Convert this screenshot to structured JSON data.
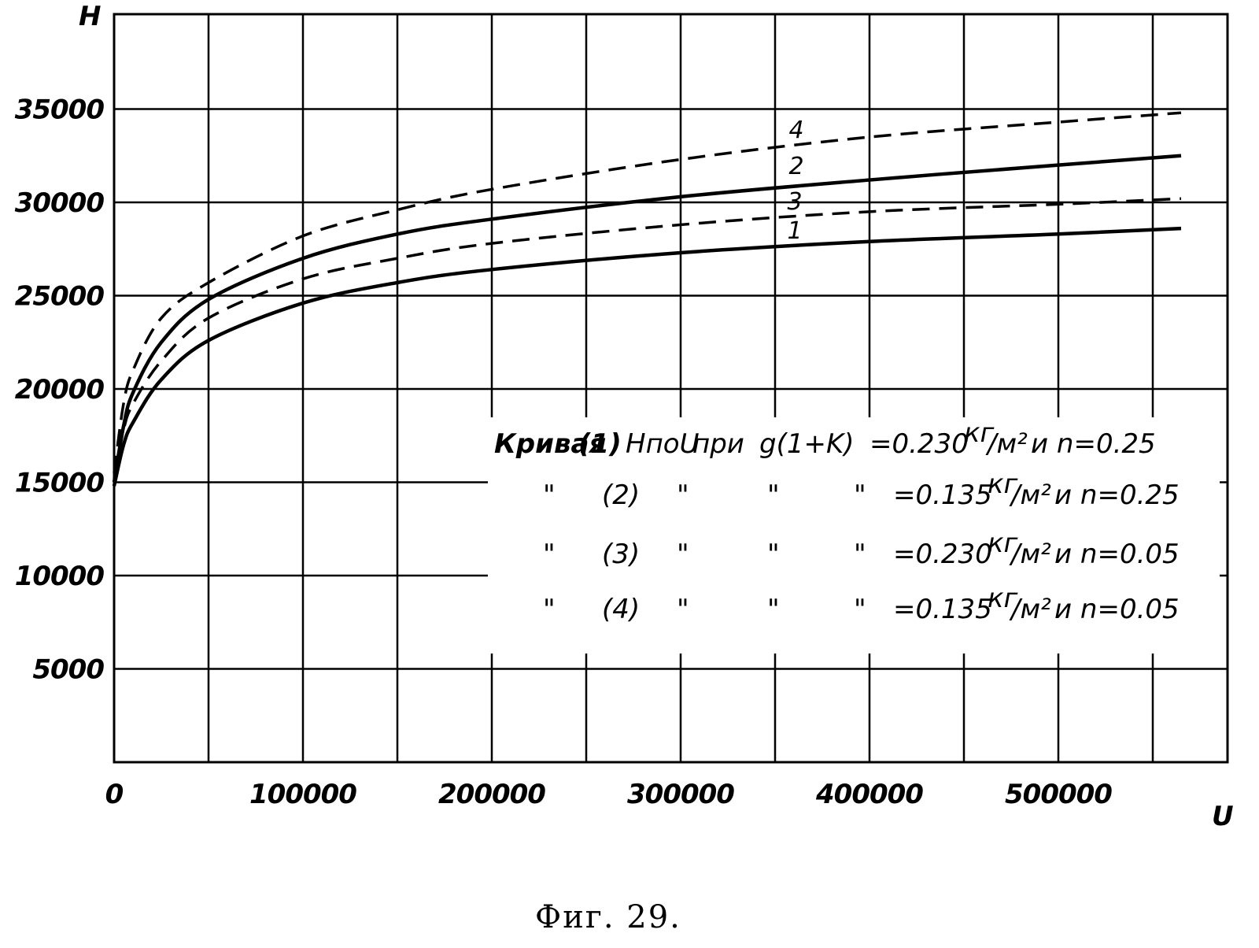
{
  "caption": "Фиг. 29.",
  "chart_data": {
    "type": "line",
    "xlabel": "U",
    "ylabel": "H",
    "xlim": [
      0,
      575000
    ],
    "ylim": [
      0,
      40000
    ],
    "x_ticks": [
      "0",
      "100000",
      "200000",
      "300000",
      "400000",
      "500000"
    ],
    "y_ticks": [
      "5000",
      "10000",
      "15000",
      "20000",
      "25000",
      "30000",
      "35000"
    ],
    "grid": true,
    "series": [
      {
        "name": "1",
        "style": "solid",
        "x": [
          0,
          5000,
          10000,
          25000,
          50000,
          100000,
          150000,
          200000,
          300000,
          400000,
          500000,
          565000
        ],
        "y": [
          14800,
          17000,
          18200,
          20500,
          22600,
          24600,
          25700,
          26400,
          27300,
          27900,
          28300,
          28600
        ]
      },
      {
        "name": "2",
        "style": "solid",
        "x": [
          0,
          5000,
          10000,
          25000,
          50000,
          100000,
          150000,
          200000,
          300000,
          400000,
          500000,
          565000
        ],
        "y": [
          15000,
          18000,
          19800,
          22500,
          24800,
          27000,
          28300,
          29100,
          30300,
          31200,
          32000,
          32500
        ]
      },
      {
        "name": "3",
        "style": "dashed",
        "x": [
          0,
          5000,
          10000,
          25000,
          50000,
          100000,
          150000,
          200000,
          300000,
          400000,
          500000,
          565000
        ],
        "y": [
          15200,
          17800,
          19200,
          21500,
          23800,
          25900,
          27000,
          27800,
          28800,
          29500,
          29900,
          30200
        ]
      },
      {
        "name": "4",
        "style": "dashed",
        "x": [
          0,
          5000,
          10000,
          25000,
          50000,
          100000,
          150000,
          200000,
          300000,
          400000,
          500000,
          565000
        ],
        "y": [
          15500,
          19200,
          21000,
          23800,
          25700,
          28200,
          29600,
          30700,
          32300,
          33500,
          34300,
          34800
        ]
      }
    ],
    "legend": {
      "placement": "center-right",
      "rows": [
        {
          "prefix": "Кривая",
          "num": "(1)",
          "col1": "HпoU",
          "col2": "при",
          "col3": "g(1+K)",
          "value": "=0.230",
          "unit_sup": "кг",
          "unit": "/м²",
          "tail": "и n=0.25"
        },
        {
          "prefix": "\"",
          "num": "(2)",
          "col1": "\"",
          "col2": "\"",
          "col3": "\"",
          "value": "=0.135",
          "unit_sup": "кг",
          "unit": "/м²",
          "tail": "и n=0.25"
        },
        {
          "prefix": "\"",
          "num": "(3)",
          "col1": "\"",
          "col2": "\"",
          "col3": "\"",
          "value": "=0.230",
          "unit_sup": "кг",
          "unit": "/м²",
          "tail": "и n=0.05"
        },
        {
          "prefix": "\"",
          "num": "(4)",
          "col1": "\"",
          "col2": "\"",
          "col3": "\"",
          "value": "=0.135",
          "unit_sup": "кг",
          "unit": "/м²",
          "tail": "и n=0.05"
        }
      ]
    }
  }
}
